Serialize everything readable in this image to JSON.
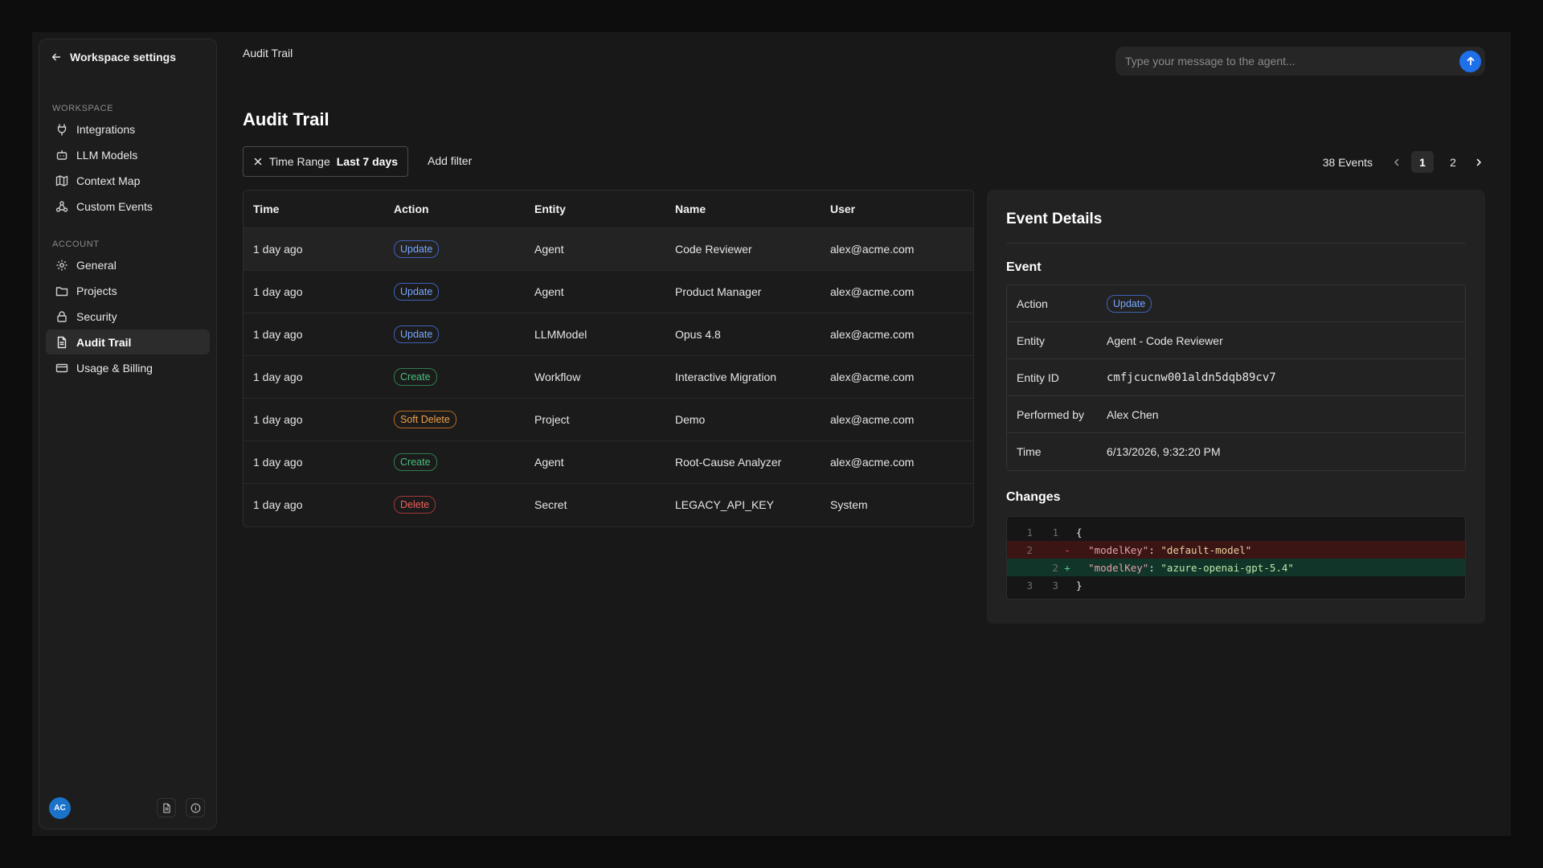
{
  "sidebar": {
    "back_label": "Workspace settings",
    "sections": [
      {
        "title": "WORKSPACE",
        "items": [
          {
            "label": "Integrations",
            "icon": "plug-icon"
          },
          {
            "label": "LLM Models",
            "icon": "robot-icon"
          },
          {
            "label": "Context Map",
            "icon": "map-icon"
          },
          {
            "label": "Custom Events",
            "icon": "webhook-icon"
          }
        ]
      },
      {
        "title": "ACCOUNT",
        "items": [
          {
            "label": "General",
            "icon": "gear-icon"
          },
          {
            "label": "Projects",
            "icon": "folder-icon"
          },
          {
            "label": "Security",
            "icon": "lock-icon"
          },
          {
            "label": "Audit Trail",
            "icon": "document-icon",
            "active": true
          },
          {
            "label": "Usage & Billing",
            "icon": "credit-card-icon"
          }
        ]
      }
    ],
    "avatar_initials": "AC"
  },
  "header": {
    "breadcrumb": "Audit Trail",
    "agent_input_placeholder": "Type your message to the agent..."
  },
  "main": {
    "title": "Audit Trail",
    "filter": {
      "name": "Time Range",
      "value": "Last 7 days"
    },
    "add_filter_label": "Add filter",
    "pagination": {
      "events_label": "38 Events",
      "pages": [
        "1",
        "2"
      ],
      "current": "1"
    },
    "table": {
      "columns": [
        "Time",
        "Action",
        "Entity",
        "Name",
        "User"
      ],
      "rows": [
        {
          "time": "1 day ago",
          "action": "Update",
          "entity": "Agent",
          "name": "Code Reviewer",
          "user": "alex@acme.com"
        },
        {
          "time": "1 day ago",
          "action": "Update",
          "entity": "Agent",
          "name": "Product Manager",
          "user": "alex@acme.com"
        },
        {
          "time": "1 day ago",
          "action": "Update",
          "entity": "LLMModel",
          "name": "Opus 4.8",
          "user": "alex@acme.com"
        },
        {
          "time": "1 day ago",
          "action": "Create",
          "entity": "Workflow",
          "name": "Interactive Migration",
          "user": "alex@acme.com"
        },
        {
          "time": "1 day ago",
          "action": "Soft Delete",
          "entity": "Project",
          "name": "Demo",
          "user": "alex@acme.com"
        },
        {
          "time": "1 day ago",
          "action": "Create",
          "entity": "Agent",
          "name": "Root-Cause Analyzer",
          "user": "alex@acme.com"
        },
        {
          "time": "1 day ago",
          "action": "Delete",
          "entity": "Secret",
          "name": "LEGACY_API_KEY",
          "user": "System"
        }
      ]
    }
  },
  "details": {
    "title": "Event Details",
    "event_heading": "Event",
    "fields": {
      "action_label": "Action",
      "action_value": "Update",
      "entity_label": "Entity",
      "entity_value": "Agent - Code Reviewer",
      "entity_id_label": "Entity ID",
      "entity_id_value": "cmfjcucnw001aldn5dqb89cv7",
      "performed_by_label": "Performed by",
      "performed_by_value": "Alex Chen",
      "time_label": "Time",
      "time_value": "6/13/2026, 9:32:20 PM"
    },
    "changes_heading": "Changes",
    "diff": {
      "line1": {
        "old": "1",
        "new": "1",
        "code": "{"
      },
      "line2": {
        "old": "2",
        "new": "",
        "sign": "-",
        "key": "\"modelKey\"",
        "value": "\"default-model\""
      },
      "line3": {
        "old": "",
        "new": "2",
        "sign": "+",
        "key": "\"modelKey\"",
        "value": "\"azure-openai-gpt-5.4\""
      },
      "line4": {
        "old": "3",
        "new": "3",
        "code": "}"
      }
    }
  },
  "colors": {
    "accent": "#1f6feb",
    "update": "#7aa8ff",
    "create": "#49c07c",
    "soft_delete": "#f0a048",
    "delete": "#f0605a"
  }
}
